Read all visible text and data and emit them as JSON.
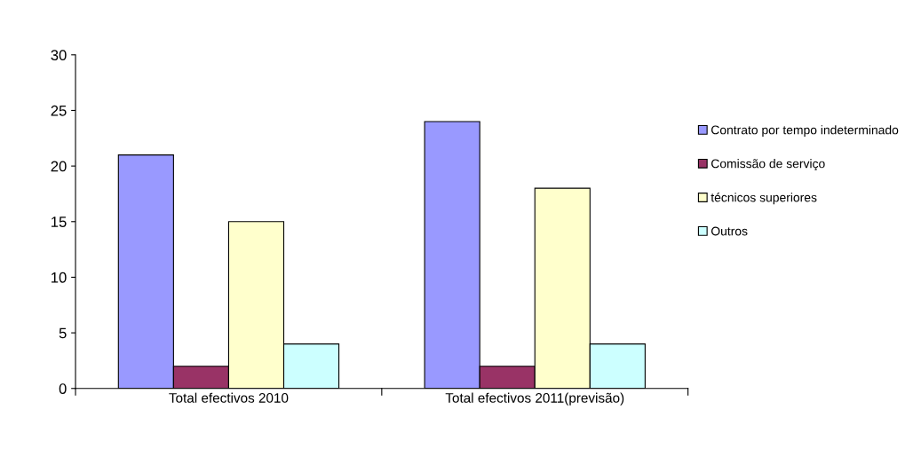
{
  "chart_data": {
    "type": "bar",
    "categories": [
      "Total efectivos 2010",
      "Total efectivos 2011(previsão)"
    ],
    "series": [
      {
        "name": "Contrato por tempo indeterminado",
        "color": "#9999ff",
        "values": [
          21,
          24
        ]
      },
      {
        "name": "Comissão de serviço",
        "color": "#993366",
        "values": [
          2,
          2
        ]
      },
      {
        "name": "técnicos superiores",
        "color": "#ffffcc",
        "values": [
          15,
          18
        ]
      },
      {
        "name": "Outros",
        "color": "#ccffff",
        "values": [
          4,
          4
        ]
      }
    ],
    "ylim": [
      0,
      30
    ],
    "yticks": [
      0,
      5,
      10,
      15,
      20,
      25,
      30
    ],
    "grid": false,
    "legend": "right"
  }
}
